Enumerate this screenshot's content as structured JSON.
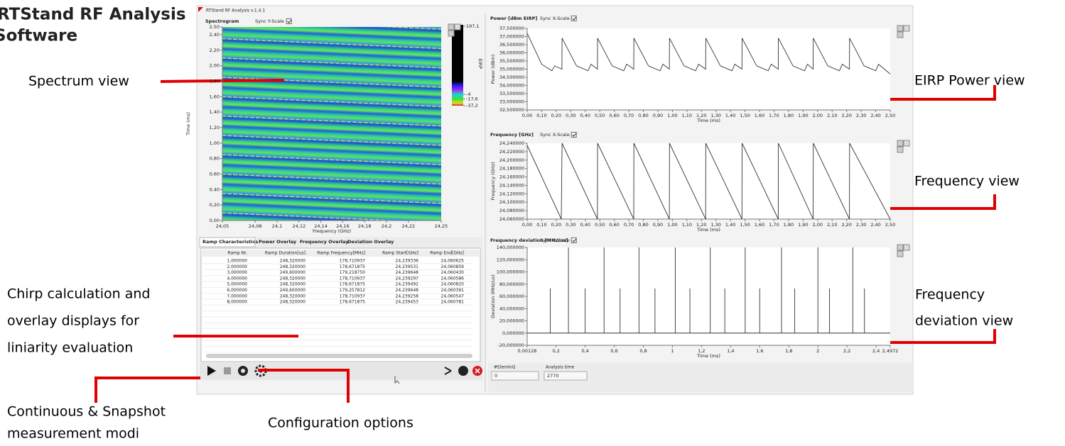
{
  "annotations": {
    "title": [
      "RTStand RF Analysis",
      "Software"
    ],
    "spectrum": "Spectrum view",
    "eirp": "EIRP Power view",
    "frequency": "Frequency view",
    "deviation": [
      "Frequency",
      "deviation view"
    ],
    "chirp": [
      "Chirp calculation and",
      "overlay displays for",
      "liniarity evaluation"
    ],
    "modes": [
      "Continuous & Snapshot",
      "measurement modi"
    ],
    "config": "Configuration options"
  },
  "window": {
    "title": "RTStand RF Analysis v.1.4.1"
  },
  "spectrogram": {
    "title": "Spectrogram",
    "sync": "Sync Y-Scale",
    "ylabel": "Time (ms)",
    "xlabel": "Frequency (GHz)",
    "ylim": [
      0,
      2.5
    ],
    "yticks": [
      {
        "value": 0,
        "label": "0,00"
      },
      {
        "value": 0.2,
        "label": "0,20"
      },
      {
        "value": 0.4,
        "label": "0,40"
      },
      {
        "value": 0.6,
        "label": "0,60"
      },
      {
        "value": 0.8,
        "label": "0,80"
      },
      {
        "value": 1,
        "label": "1,00"
      },
      {
        "value": 1.2,
        "label": "1,20"
      },
      {
        "value": 1.4,
        "label": "1,40"
      },
      {
        "value": 1.6,
        "label": "1,60"
      },
      {
        "value": 1.8,
        "label": "1,80"
      },
      {
        "value": 2,
        "label": "2,00"
      },
      {
        "value": 2.2,
        "label": "2,20"
      },
      {
        "value": 2.4,
        "label": "2,40"
      },
      {
        "value": 2.5,
        "label": "2,50"
      }
    ],
    "x_axis": {
      "lim": [
        24.05,
        24.25
      ],
      "ticks": [
        {
          "value": 24.05,
          "label": "24,05"
        },
        {
          "value": 24.08,
          "label": "24,08"
        },
        {
          "value": 24.1,
          "label": "24,1"
        },
        {
          "value": 24.12,
          "label": "24,12"
        },
        {
          "value": 24.14,
          "label": "24,14"
        },
        {
          "value": 24.16,
          "label": "24,16"
        },
        {
          "value": 24.18,
          "label": "24,18"
        },
        {
          "value": 24.2,
          "label": "24,2"
        },
        {
          "value": 24.22,
          "label": "24,22"
        },
        {
          "value": 24.25,
          "label": "24,25"
        }
      ]
    },
    "colorbar": {
      "label": "EIRP",
      "clim": [
        -37.2,
        197.1
      ],
      "ticks": [
        {
          "value": 197.1,
          "label": "197,1"
        },
        {
          "value": -4,
          "label": "-4"
        },
        {
          "value": -17.6,
          "label": "-17,6"
        },
        {
          "value": -37.2,
          "label": "-37,2"
        }
      ]
    }
  },
  "time_axis": {
    "label": "Time (ms)",
    "lim": [
      0,
      2.5
    ],
    "ticks": [
      {
        "value": 0,
        "label": "0,00"
      },
      {
        "value": 0.1,
        "label": "0,10"
      },
      {
        "value": 0.2,
        "label": "0,20"
      },
      {
        "value": 0.3,
        "label": "0,30"
      },
      {
        "value": 0.4,
        "label": "0,40"
      },
      {
        "value": 0.5,
        "label": "0,50"
      },
      {
        "value": 0.6,
        "label": "0,60"
      },
      {
        "value": 0.7,
        "label": "0,70"
      },
      {
        "value": 0.8,
        "label": "0,80"
      },
      {
        "value": 0.9,
        "label": "0,90"
      },
      {
        "value": 1,
        "label": "1,00"
      },
      {
        "value": 1.1,
        "label": "1,10"
      },
      {
        "value": 1.2,
        "label": "1,20"
      },
      {
        "value": 1.3,
        "label": "1,30"
      },
      {
        "value": 1.4,
        "label": "1,40"
      },
      {
        "value": 1.5,
        "label": "1,50"
      },
      {
        "value": 1.6,
        "label": "1,60"
      },
      {
        "value": 1.7,
        "label": "1,70"
      },
      {
        "value": 1.8,
        "label": "1,80"
      },
      {
        "value": 1.9,
        "label": "1,90"
      },
      {
        "value": 2,
        "label": "2,00"
      },
      {
        "value": 2.1,
        "label": "2,10"
      },
      {
        "value": 2.2,
        "label": "2,20"
      },
      {
        "value": 2.3,
        "label": "2,30"
      },
      {
        "value": 2.4,
        "label": "2,40"
      },
      {
        "value": 2.5,
        "label": "2,50"
      }
    ]
  },
  "power_plot": {
    "title": "Power [dBm EIRP]",
    "sync": "Sync X-Scale",
    "ylabel": "Power (dBm)",
    "ylim": [
      32.5,
      37.5
    ],
    "yticks": [
      {
        "value": 37.5,
        "label": "37,500000"
      },
      {
        "value": 37,
        "label": "37,000000"
      },
      {
        "value": 36.5,
        "label": "36,500000"
      },
      {
        "value": 36,
        "label": "36,000000"
      },
      {
        "value": 35.5,
        "label": "35,500000"
      },
      {
        "value": 35,
        "label": "35,000000"
      },
      {
        "value": 34.5,
        "label": "34,500000"
      },
      {
        "value": 34,
        "label": "34,000000"
      },
      {
        "value": 33.5,
        "label": "33,500000"
      },
      {
        "value": 33,
        "label": "33,000000"
      },
      {
        "value": 32.5,
        "label": "32,500000"
      }
    ],
    "trace": {
      "x": [
        0,
        0.1,
        0.17,
        0.19,
        0.239,
        0.24,
        0.34,
        0.42,
        0.44,
        0.484,
        0.485,
        0.585,
        0.665,
        0.685,
        0.734,
        0.735,
        0.835,
        0.915,
        0.935,
        0.979,
        0.98,
        1.08,
        1.16,
        1.18,
        1.229,
        1.23,
        1.33,
        1.41,
        1.43,
        1.479,
        1.48,
        1.58,
        1.66,
        1.68,
        1.729,
        1.73,
        1.83,
        1.91,
        1.93,
        1.969,
        1.97,
        2.07,
        2.15,
        2.17,
        2.219,
        2.22,
        2.32,
        2.4,
        2.42,
        2.5
      ],
      "y": [
        37.2,
        35.3,
        34.9,
        35.2,
        35.0,
        36.9,
        35.2,
        34.9,
        35.3,
        35.0,
        36.9,
        35.2,
        34.9,
        35.3,
        35.0,
        36.9,
        35.2,
        34.9,
        35.3,
        35.0,
        36.9,
        35.2,
        34.9,
        35.3,
        35.0,
        36.9,
        35.2,
        34.9,
        35.3,
        35.0,
        36.9,
        35.2,
        34.9,
        35.3,
        35.0,
        36.9,
        35.2,
        34.9,
        35.3,
        35.0,
        36.9,
        35.2,
        34.9,
        35.3,
        35.0,
        36.9,
        35.2,
        34.9,
        35.3,
        34.7
      ]
    }
  },
  "frequency_plot": {
    "title": "Frequency [GHz]",
    "sync": "Sync X-Scale",
    "ylabel": "Frequency (GHz)",
    "ylim": [
      24.06,
      24.24
    ],
    "yticks": [
      {
        "value": 24.24,
        "label": "24,240000"
      },
      {
        "value": 24.22,
        "label": "24,220000"
      },
      {
        "value": 24.2,
        "label": "24,200000"
      },
      {
        "value": 24.18,
        "label": "24,180000"
      },
      {
        "value": 24.16,
        "label": "24,160000"
      },
      {
        "value": 24.14,
        "label": "24,140000"
      },
      {
        "value": 24.12,
        "label": "24,120000"
      },
      {
        "value": 24.1,
        "label": "24,100000"
      },
      {
        "value": 24.08,
        "label": "24,080000"
      },
      {
        "value": 24.06,
        "label": "24,060000"
      }
    ],
    "trace": {
      "x": [
        0,
        0.235,
        0.24,
        0.484,
        0.485,
        0.734,
        0.735,
        0.979,
        0.98,
        1.229,
        1.23,
        1.479,
        1.48,
        1.729,
        1.73,
        1.969,
        1.97,
        2.219,
        2.22,
        2.5
      ],
      "y": [
        24.235,
        24.06,
        24.24,
        24.06,
        24.24,
        24.06,
        24.24,
        24.06,
        24.24,
        24.06,
        24.24,
        24.06,
        24.24,
        24.06,
        24.24,
        24.06,
        24.24,
        24.06,
        24.24,
        24.06
      ]
    }
  },
  "deviation_plot": {
    "title": "Frequency deviation [MHz/us]",
    "sync": "Sync X-Scale",
    "ylabel": "Deviation (MHz/us)",
    "xlabel": "Time (ms)",
    "ylim": [
      -20,
      140
    ],
    "yticks": [
      {
        "value": 140,
        "label": "140,000000"
      },
      {
        "value": 120,
        "label": "120,000000"
      },
      {
        "value": 100,
        "label": "100,000000"
      },
      {
        "value": 80,
        "label": "80,000000"
      },
      {
        "value": 60,
        "label": "60,000000"
      },
      {
        "value": 40,
        "label": "40,000000"
      },
      {
        "value": 20,
        "label": "20,000000"
      },
      {
        "value": 0,
        "label": "0,000000"
      },
      {
        "value": -20,
        "label": "-20,000000"
      }
    ],
    "x_axis": {
      "lim": [
        0.00128,
        2.4972
      ],
      "ticks": [
        {
          "value": 0.00128,
          "label": "0,00128"
        },
        {
          "value": 0.2,
          "label": "0,2"
        },
        {
          "value": 0.4,
          "label": "0,4"
        },
        {
          "value": 0.6,
          "label": "0,6"
        },
        {
          "value": 0.8,
          "label": "0,8"
        },
        1,
        {
          "value": 1.2,
          "label": "1,2"
        },
        {
          "value": 1.4,
          "label": "1,4"
        },
        {
          "value": 1.6,
          "label": "1,6"
        },
        {
          "value": 1.8,
          "label": "1,8"
        },
        2,
        {
          "value": 2.2,
          "label": "2,2"
        },
        {
          "value": 2.4,
          "label": "2,4"
        },
        {
          "value": 2.4972,
          "label": "2,4972"
        }
      ]
    },
    "baseline": 0,
    "spike_x": [
      0.16,
      0.285,
      0.4,
      0.53,
      0.64,
      0.77,
      0.88,
      1.02,
      1.12,
      1.26,
      1.36,
      1.5,
      1.6,
      1.75,
      1.84,
      2.0,
      2.08,
      2.24,
      2.32
    ],
    "spike_y": [
      73,
      140,
      73,
      140,
      73,
      140,
      73,
      140,
      73,
      140,
      73,
      140,
      73,
      140,
      73,
      140,
      73,
      140,
      73
    ]
  },
  "table": {
    "tabs": [
      "Ramp Characteristics",
      "Power Overlay",
      "Frequency Overlay",
      "Deviation Overlay"
    ],
    "columns": [
      "Ramp Nr.",
      "Ramp Duration[us]",
      "Ramp Frequency[MHz]",
      "Ramp Start[GHz]",
      "Ramp End[GHz]"
    ],
    "rows": [
      [
        "1,000000",
        "248,320000",
        "178,710937",
        "24,239336",
        "24,060625"
      ],
      [
        "2,000000",
        "248,320000",
        "178,671875",
        "24,239531",
        "24,060859"
      ],
      [
        "3,000000",
        "249,600000",
        "179,218750",
        "24,239648",
        "24,060430"
      ],
      [
        "4,000000",
        "248,320000",
        "178,710937",
        "24,239297",
        "24,060586"
      ],
      [
        "5,000000",
        "248,320000",
        "178,671875",
        "24,239492",
        "24,060820"
      ],
      [
        "6,000000",
        "249,600000",
        "179,257812",
        "24,239648",
        "24,060391"
      ],
      [
        "7,000000",
        "248,320000",
        "178,710937",
        "24,239258",
        "24,060547"
      ],
      [
        "8,000000",
        "248,320000",
        "178,671875",
        "24,239453",
        "24,060781"
      ]
    ]
  },
  "status": {
    "queue_label": "#ElemInQ",
    "queue_value": "0",
    "time_label": "Analysis time",
    "time_value": "2770"
  }
}
